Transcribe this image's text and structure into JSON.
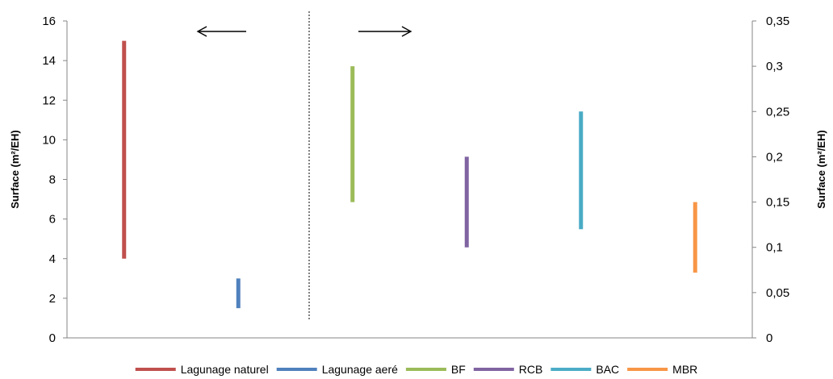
{
  "chart_data": {
    "type": "range",
    "ylabel_left": "Surface (m²/EH)",
    "ylabel_right": "Surface (m²/EH)",
    "left_axis": {
      "ylim": [
        0,
        16
      ],
      "ticks": [
        "0",
        "2",
        "4",
        "6",
        "8",
        "10",
        "12",
        "14",
        "16"
      ]
    },
    "right_axis": {
      "ylim": [
        0,
        0.35
      ],
      "ticks": [
        "0",
        "0,05",
        "0,1",
        "0,15",
        "0,2",
        "0,25",
        "0,3",
        "0,35"
      ]
    },
    "grid": false,
    "legend_position": "bottom",
    "annotations": [
      {
        "type": "arrow",
        "direction": "left",
        "meaning": "left axis"
      },
      {
        "type": "arrow",
        "direction": "right",
        "meaning": "right axis"
      }
    ],
    "series": [
      {
        "name": "Lagunage naturel",
        "axis": "left",
        "min": 4,
        "max": 15,
        "color": "#C0504D"
      },
      {
        "name": "Lagunage aeré",
        "axis": "left",
        "min": 1.5,
        "max": 3,
        "color": "#4F81BD"
      },
      {
        "name": "BF",
        "axis": "right",
        "min": 0.15,
        "max": 0.3,
        "color": "#9BBB59"
      },
      {
        "name": "RCB",
        "axis": "right",
        "min": 0.1,
        "max": 0.2,
        "color": "#8064A2"
      },
      {
        "name": "BAC",
        "axis": "right",
        "min": 0.12,
        "max": 0.25,
        "color": "#4BACC6"
      },
      {
        "name": "MBR",
        "axis": "right",
        "min": 0.072,
        "max": 0.15,
        "color": "#F79646"
      }
    ]
  }
}
